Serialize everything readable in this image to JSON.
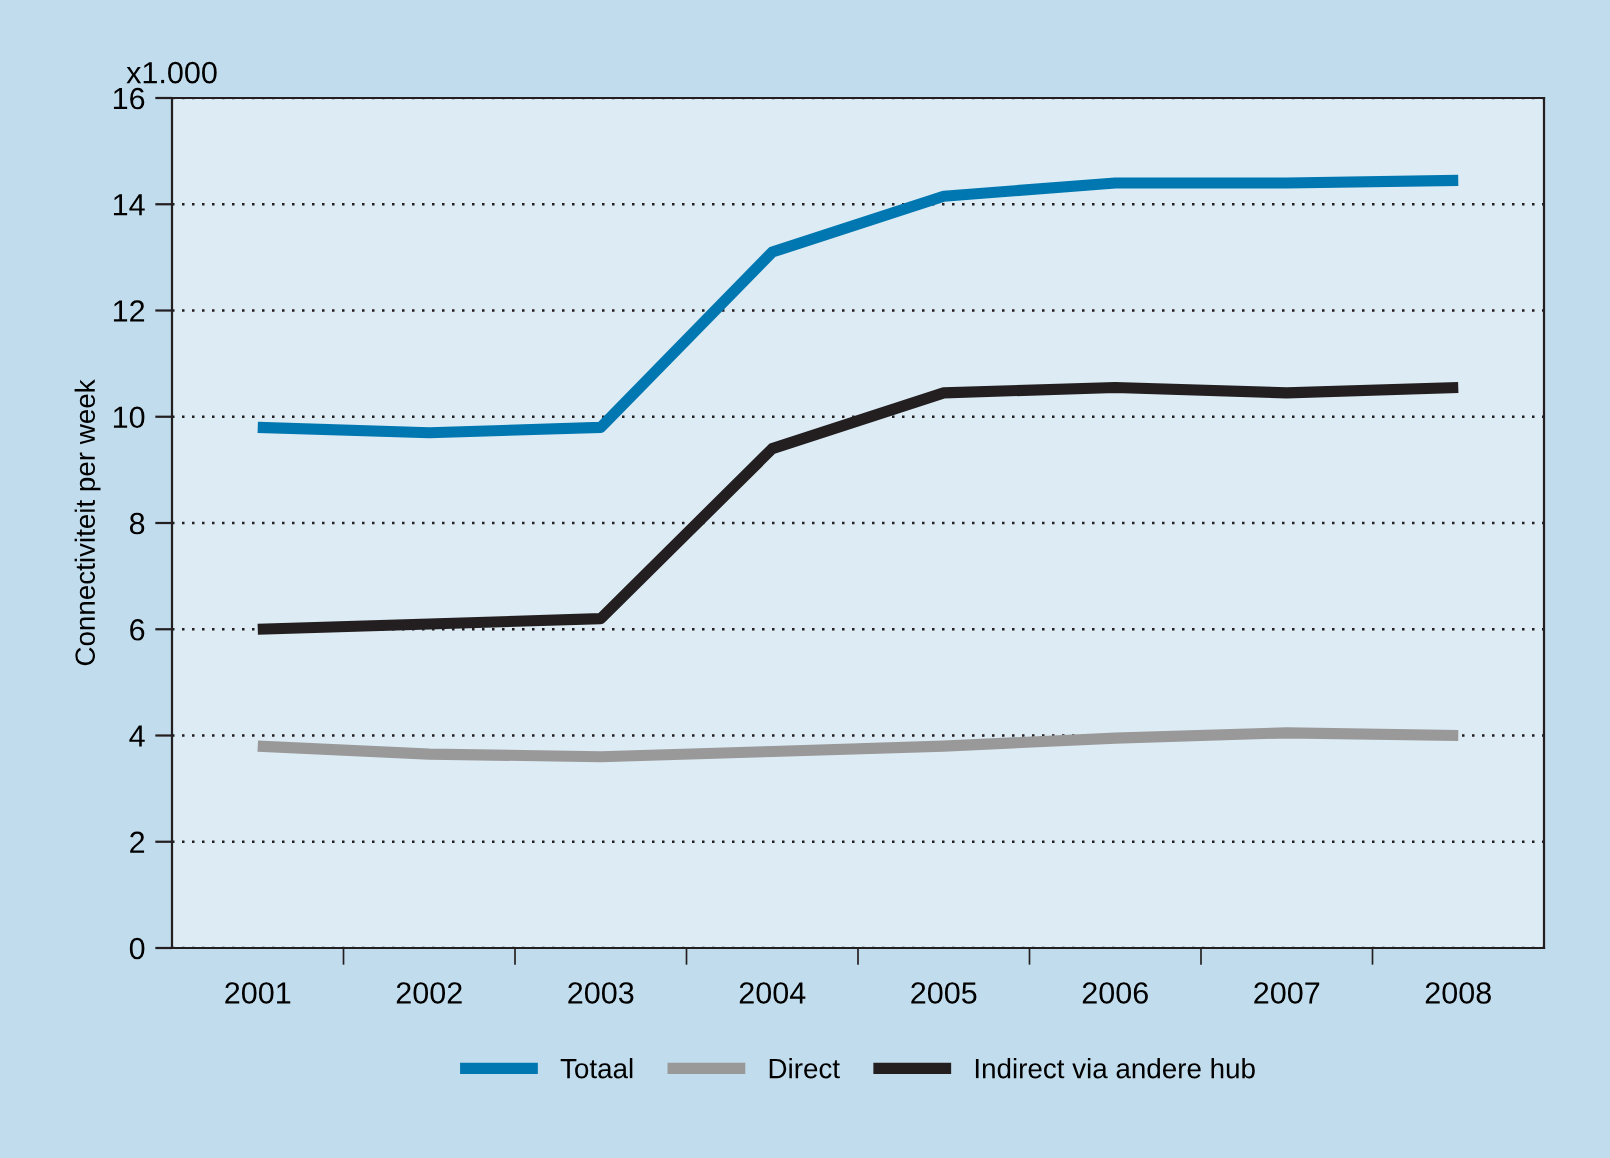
{
  "chart_data": {
    "type": "line",
    "ylabel": "Connectiviteit per week",
    "annotations": [
      "x1.000"
    ],
    "categories": [
      "2001",
      "2002",
      "2003",
      "2004",
      "2005",
      "2006",
      "2007",
      "2008"
    ],
    "series": [
      {
        "name": "Totaal",
        "color": "#0077b0",
        "values": [
          9.8,
          9.7,
          9.8,
          13.1,
          14.15,
          14.4,
          14.4,
          14.45
        ]
      },
      {
        "name": "Direct",
        "color": "#999999",
        "values": [
          3.8,
          3.65,
          3.6,
          3.7,
          3.8,
          3.95,
          4.05,
          4.0
        ]
      },
      {
        "name": "Indirect via andere hub",
        "color": "#231f20",
        "values": [
          6.0,
          6.1,
          6.2,
          9.4,
          10.45,
          10.55,
          10.45,
          10.55
        ]
      }
    ],
    "ylim": [
      0,
      16
    ],
    "yticks": [
      0,
      2,
      4,
      6,
      8,
      10,
      12,
      14,
      16
    ],
    "grid": "y",
    "legend": "bottom",
    "marker": "none",
    "line_style": "solid"
  }
}
